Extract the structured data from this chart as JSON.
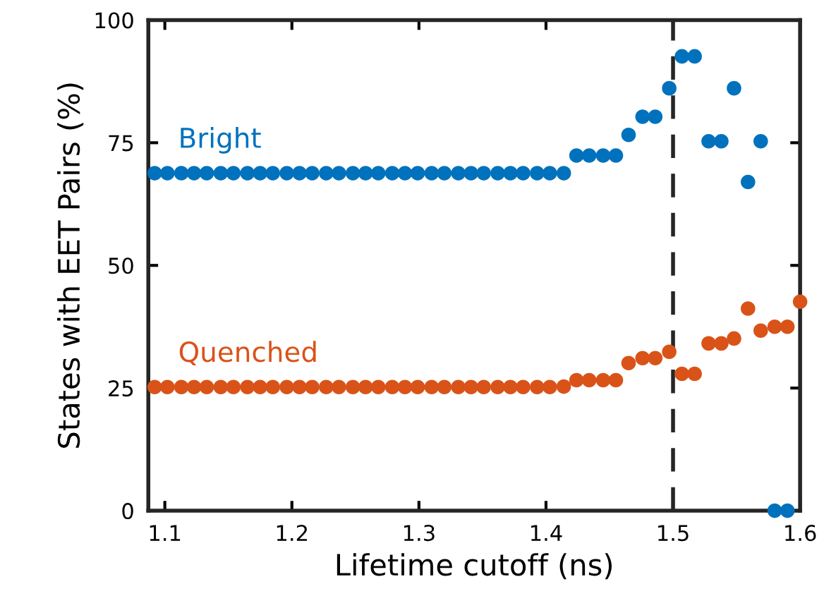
{
  "chart_data": {
    "type": "scatter",
    "xlabel": "Lifetime cutoff (ns)",
    "ylabel": "States with EET Pairs (%)",
    "x": [
      1.092,
      1.102,
      1.113,
      1.123,
      1.133,
      1.144,
      1.154,
      1.165,
      1.175,
      1.185,
      1.196,
      1.206,
      1.216,
      1.227,
      1.237,
      1.248,
      1.258,
      1.268,
      1.279,
      1.289,
      1.299,
      1.31,
      1.32,
      1.331,
      1.341,
      1.351,
      1.362,
      1.372,
      1.382,
      1.393,
      1.403,
      1.414,
      1.424,
      1.434,
      1.445,
      1.455,
      1.465,
      1.476,
      1.486,
      1.497,
      1.507,
      1.517,
      1.528,
      1.538,
      1.548,
      1.559,
      1.569,
      1.58,
      1.59,
      1.6
    ],
    "series": [
      {
        "name": "Bright",
        "color": "#0072bd",
        "values": [
          68.8,
          68.8,
          68.8,
          68.8,
          68.8,
          68.8,
          68.8,
          68.8,
          68.8,
          68.8,
          68.8,
          68.8,
          68.8,
          68.8,
          68.8,
          68.8,
          68.8,
          68.8,
          68.8,
          68.8,
          68.8,
          68.8,
          68.8,
          68.8,
          68.8,
          68.8,
          68.8,
          68.8,
          68.8,
          68.8,
          68.8,
          68.8,
          72.4,
          72.4,
          72.4,
          72.4,
          76.6,
          80.3,
          80.3,
          86.1,
          92.6,
          92.6,
          75.3,
          75.3,
          86.1,
          67.0,
          75.3,
          0,
          0,
          null
        ]
      },
      {
        "name": "Quenched",
        "color": "#d95319",
        "values": [
          25.2,
          25.2,
          25.2,
          25.2,
          25.2,
          25.2,
          25.2,
          25.2,
          25.2,
          25.2,
          25.2,
          25.2,
          25.2,
          25.2,
          25.2,
          25.2,
          25.2,
          25.2,
          25.2,
          25.2,
          25.2,
          25.2,
          25.2,
          25.2,
          25.2,
          25.2,
          25.2,
          25.2,
          25.2,
          25.2,
          25.2,
          25.3,
          26.6,
          26.6,
          26.6,
          26.6,
          30.1,
          31.1,
          31.1,
          32.4,
          27.9,
          27.9,
          34.1,
          34.1,
          35.1,
          41.2,
          36.7,
          37.5,
          37.5,
          42.6
        ]
      }
    ],
    "xlim": [
      1.087,
      1.6
    ],
    "xticks": [
      1.1,
      1.2,
      1.3,
      1.4,
      1.5,
      1.6
    ],
    "ylim": [
      0,
      100
    ],
    "yticks": [
      0,
      25,
      50,
      75,
      100
    ],
    "ref_lines": [
      {
        "axis": "x",
        "value": 1.5,
        "color": "#262626",
        "line_style": "dashed"
      }
    ],
    "marker": "circle",
    "grid": false,
    "legend": false
  }
}
